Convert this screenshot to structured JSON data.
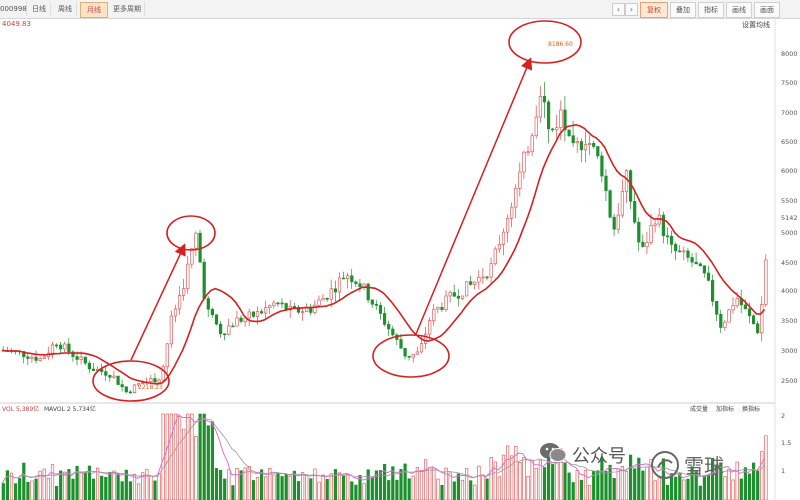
{
  "toolbar": {
    "symbol": "000998",
    "tabs": [
      "日线",
      "周线",
      "月线",
      "更多周期"
    ],
    "active_tab": 2,
    "right_buttons": [
      "复权",
      "叠加",
      "指标",
      "画线",
      "画面"
    ]
  },
  "chart": {
    "price_label": "4049.83",
    "mode_label": "设置均线",
    "y_ticks": [
      "8000",
      "7500",
      "7000",
      "6500",
      "6000",
      "5500",
      "5142",
      "5000",
      "4500",
      "4000",
      "3500",
      "3000",
      "2500"
    ],
    "peak_annotation": "8186.60",
    "low_annotation": "2218.23"
  },
  "volume": {
    "header_left": "VOL 5,389亿",
    "header_mid": "MAVOL 2 5,734亿",
    "header_right": [
      "成交量",
      "加指标",
      "换指标"
    ],
    "y_ticks": [
      "2",
      "1.5",
      "1"
    ]
  },
  "watermark": {
    "text": "公众号",
    "handle": "雪球"
  },
  "colors": {
    "up": "#e04545",
    "down": "#1d8f2d",
    "ma": "#d42020",
    "arrow": "#d42020"
  }
}
